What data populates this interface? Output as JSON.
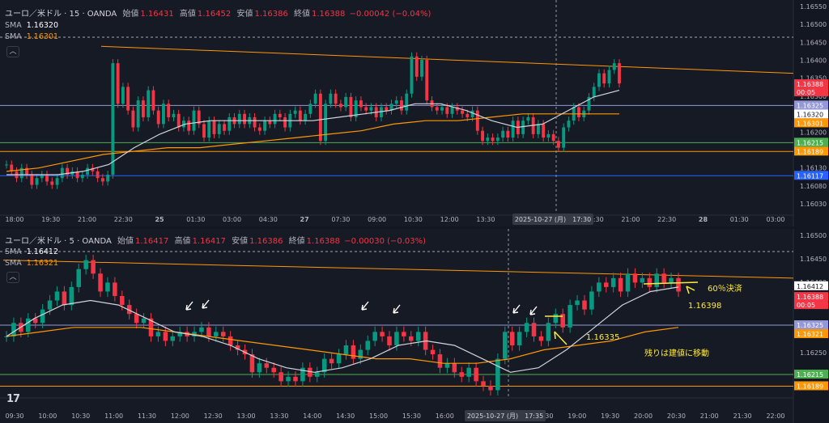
{
  "top": {
    "header": {
      "symbol": "ユーロ／米ドル · 15 · OANDA",
      "open_label": "始値",
      "open": "1.16431",
      "high_label": "高値",
      "high": "1.16452",
      "low_label": "安値",
      "low": "1.16386",
      "close_label": "終値",
      "close": "1.16388",
      "change": "−0.00042 (−0.04%)"
    },
    "sma1": {
      "label": "SMA",
      "value": "1.16320"
    },
    "sma2": {
      "label": "SMA",
      "value": "1.16301"
    },
    "price_ticks": [
      "1.16550",
      "1.16500",
      "1.16450",
      "1.16400",
      "1.16350",
      "1.16300",
      "1.16250",
      "1.16200",
      "1.16150",
      "1.16130",
      "1.16080",
      "1.16030"
    ],
    "time_ticks": [
      "18:00",
      "19:30",
      "21:00",
      "22:30",
      "25",
      "01:30",
      "03:00",
      "04:30",
      "27",
      "07:30",
      "09:00",
      "10:30",
      "12:00",
      "13:30",
      "15:00",
      "",
      "19:30",
      "21:00",
      "22:30",
      "28",
      "01:30",
      "03:00"
    ],
    "crosshair_label": "2025-10-27 (月)　17:30",
    "price_labels": [
      {
        "text": "1.16388",
        "sub": "00:05",
        "color": "#f23645",
        "price": 1.16388
      },
      {
        "text": "1.16325",
        "color": "#9598d8",
        "price": 1.16325
      },
      {
        "text": "1.16320",
        "color": "#ffffff",
        "price": 1.1632
      },
      {
        "text": "1.16301",
        "color": "#ff9800",
        "price": 1.16301
      },
      {
        "text": "1.16215",
        "color": "#4caf50",
        "price": 1.16215
      },
      {
        "text": "1.16189",
        "color": "#ff9800",
        "price": 1.16189
      },
      {
        "text": "1.16117",
        "color": "#2962ff",
        "price": 1.16117
      }
    ]
  },
  "bottom": {
    "header": {
      "symbol": "ユーロ／米ドル · 5 · OANDA",
      "open_label": "始値",
      "open": "1.16417",
      "high_label": "高値",
      "high": "1.16417",
      "low_label": "安値",
      "low": "1.16386",
      "close_label": "終値",
      "close": "1.16388",
      "change": "−0.00030 (−0.03%)"
    },
    "sma1": {
      "label": "SMA",
      "value": "1.16412"
    },
    "sma2": {
      "label": "SMA",
      "value": "1.16321"
    },
    "price_ticks": [
      "1.16500",
      "1.16450",
      "1.16400",
      "1.16350",
      "1.16300",
      "1.16250",
      "1.16200"
    ],
    "time_ticks": [
      "09:30",
      "10:00",
      "10:30",
      "11:00",
      "11:30",
      "12:00",
      "12:30",
      "13:00",
      "13:30",
      "14:00",
      "14:30",
      "15:00",
      "15:30",
      "16:00",
      "16:30",
      "",
      "18:30",
      "19:00",
      "19:30",
      "20:00",
      "20:30",
      "21:00",
      "21:30",
      "22:00"
    ],
    "crosshair_label": "2025-10-27 (月)　17:35",
    "price_labels": [
      {
        "text": "1.16412",
        "color": "#ffffff",
        "price": 1.16412
      },
      {
        "text": "1.16388",
        "sub": "00:05",
        "color": "#f23645",
        "price": 1.16388
      },
      {
        "text": "1.16325",
        "color": "#9598d8",
        "price": 1.16325
      },
      {
        "text": "1.16321",
        "color": "#ff9800",
        "price": 1.16321
      },
      {
        "text": "1.16215",
        "color": "#4caf50",
        "price": 1.16215
      },
      {
        "text": "1.16189",
        "color": "#ff9800",
        "price": 1.16189
      }
    ],
    "annotations": {
      "target": "60％決済",
      "price1": "1.16398",
      "price2": "1.16335",
      "move": "残りは建値に移動"
    },
    "logo": "17"
  },
  "chart_data": [
    {
      "type": "candlestick",
      "title": "ユーロ／米ドル · 15 · OANDA",
      "ylim": [
        1.1601,
        1.1657
      ],
      "horizontal_levels": [
        {
          "price": 1.16325,
          "color": "#9598d8"
        },
        {
          "price": 1.16215,
          "color": "#4caf50"
        },
        {
          "price": 1.16189,
          "color": "#ff9800"
        },
        {
          "price": 1.16117,
          "color": "#2962ff"
        }
      ],
      "colors": {
        "up": "#089981",
        "down": "#f23645",
        "sma_fast": "#d1d4dc",
        "sma_slow": "#ff9800",
        "trendline": "#ff9800"
      },
      "candles_close": [
        1.1615,
        1.1613,
        1.1611,
        1.1614,
        1.1612,
        1.1609,
        1.1611,
        1.1612,
        1.161,
        1.1609,
        1.1611,
        1.1614,
        1.1612,
        1.1613,
        1.1611,
        1.1612,
        1.1614,
        1.1613,
        1.1611,
        1.161,
        1.1612,
        1.1645,
        1.1633,
        1.1638,
        1.1631,
        1.1626,
        1.1634,
        1.1629,
        1.1637,
        1.1631,
        1.1627,
        1.1633,
        1.1629,
        1.163,
        1.1626,
        1.1628,
        1.1625,
        1.1631,
        1.1627,
        1.1623,
        1.1628,
        1.1624,
        1.1627,
        1.1625,
        1.1629,
        1.1627,
        1.163,
        1.1627,
        1.1629,
        1.1626,
        1.1625,
        1.1628,
        1.1627,
        1.163,
        1.1629,
        1.1626,
        1.163,
        1.1631,
        1.1628,
        1.163,
        1.1633,
        1.1636,
        1.1622,
        1.1633,
        1.1636,
        1.1633,
        1.1632,
        1.1635,
        1.1629,
        1.1634,
        1.1632,
        1.1631,
        1.1632,
        1.1629,
        1.1632,
        1.1631,
        1.1633,
        1.1634,
        1.1631,
        1.1636,
        1.1647,
        1.1641,
        1.1646,
        1.1634,
        1.1632,
        1.1631,
        1.1632,
        1.163,
        1.1632,
        1.1631,
        1.163,
        1.1629,
        1.1631,
        1.1625,
        1.1622,
        1.1623,
        1.1622,
        1.1623,
        1.1625,
        1.1623,
        1.1628,
        1.1624,
        1.1628,
        1.1629,
        1.1624,
        1.1627,
        1.1623,
        1.1624,
        1.1622,
        1.162,
        1.1626,
        1.1628,
        1.1632,
        1.1629,
        1.1631,
        1.1635,
        1.1638,
        1.1642,
        1.1639,
        1.1643,
        1.1645,
        1.1639
      ],
      "sma_fast": [
        1.1612,
        1.1612,
        1.1612,
        1.1613,
        1.1615,
        1.162,
        1.1624,
        1.1627,
        1.1628,
        1.1628,
        1.1628,
        1.1628,
        1.1628,
        1.1629,
        1.163,
        1.1631,
        1.1633,
        1.1633,
        1.1631,
        1.1628,
        1.1626,
        1.1627,
        1.1631,
        1.1635,
        1.1637
      ],
      "sma_slow": [
        1.1613,
        1.1614,
        1.1616,
        1.1618,
        1.1619,
        1.162,
        1.162,
        1.1621,
        1.1622,
        1.1623,
        1.1624,
        1.1625,
        1.1627,
        1.1628,
        1.1628,
        1.1629,
        1.163,
        1.163,
        1.163,
        1.163
      ],
      "trendline": [
        {
          "x": "21:00",
          "price": 1.165
        },
        {
          "x": "03:00",
          "price": 1.1642
        }
      ]
    },
    {
      "type": "candlestick",
      "title": "ユーロ／米ドル · 5 · OANDA",
      "ylim": [
        1.1617,
        1.165
      ],
      "horizontal_levels": [
        {
          "price": 1.16325,
          "color": "#9598d8"
        },
        {
          "price": 1.16215,
          "color": "#4caf50"
        },
        {
          "price": 1.16189,
          "color": "#ff9800"
        }
      ],
      "colors": {
        "up": "#089981",
        "down": "#f23645",
        "sma_fast": "#d1d4dc",
        "sma_slow": "#ff9800",
        "trendline": "#ff9800"
      },
      "candles_close": [
        1.163,
        1.1633,
        1.1631,
        1.1634,
        1.1633,
        1.1636,
        1.1638,
        1.164,
        1.1637,
        1.1641,
        1.1645,
        1.1647,
        1.1644,
        1.164,
        1.1642,
        1.1639,
        1.1637,
        1.1635,
        1.1633,
        1.1634,
        1.163,
        1.1631,
        1.1629,
        1.163,
        1.1631,
        1.163,
        1.1631,
        1.1632,
        1.163,
        1.1631,
        1.163,
        1.1628,
        1.1627,
        1.1626,
        1.1622,
        1.1624,
        1.1623,
        1.1622,
        1.162,
        1.1621,
        1.162,
        1.1623,
        1.1621,
        1.1622,
        1.1625,
        1.1624,
        1.1626,
        1.1628,
        1.1625,
        1.1627,
        1.1629,
        1.1631,
        1.163,
        1.1628,
        1.1631,
        1.163,
        1.1629,
        1.1631,
        1.1627,
        1.1626,
        1.1623,
        1.1624,
        1.1622,
        1.1621,
        1.1623,
        1.162,
        1.1619,
        1.1618,
        1.1625,
        1.1631,
        1.1628,
        1.1631,
        1.1633,
        1.163,
        1.1629,
        1.1633,
        1.1635,
        1.1632,
        1.1637,
        1.1638,
        1.1636,
        1.164,
        1.1642,
        1.1641,
        1.1643,
        1.164,
        1.1644,
        1.1642,
        1.1643,
        1.1641,
        1.1644,
        1.1642,
        1.1643,
        1.164
      ],
      "sma_fast": [
        1.163,
        1.1634,
        1.1637,
        1.1638,
        1.1637,
        1.1634,
        1.1631,
        1.163,
        1.1628,
        1.1625,
        1.1623,
        1.1622,
        1.1623,
        1.1625,
        1.1628,
        1.1629,
        1.1628,
        1.1625,
        1.1622,
        1.1623,
        1.1627,
        1.1632,
        1.1637,
        1.164,
        1.1641
      ],
      "sma_slow": [
        1.163,
        1.1631,
        1.1632,
        1.1632,
        1.1632,
        1.1631,
        1.163,
        1.1629,
        1.1628,
        1.1627,
        1.1626,
        1.1625,
        1.1625,
        1.1624,
        1.1624,
        1.1625,
        1.1627,
        1.1628,
        1.1629,
        1.1631,
        1.1632
      ],
      "trendline": [
        {
          "x": "09:30",
          "price": 1.1647
        },
        {
          "x": "22:00",
          "price": 1.1643
        }
      ]
    }
  ]
}
